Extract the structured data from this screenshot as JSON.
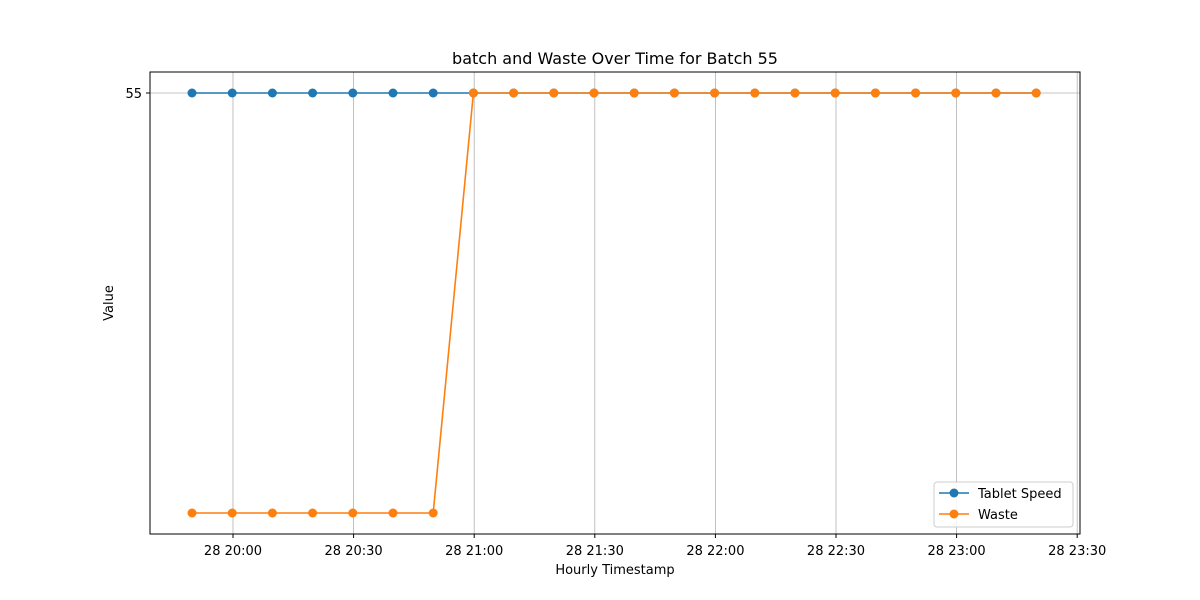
{
  "chart_data": {
    "type": "line",
    "title": "batch and Waste Over Time for Batch 55",
    "xlabel": "Hourly Timestamp",
    "ylabel": "Value",
    "x": [
      "28 19:50",
      "28 20:00",
      "28 20:10",
      "28 20:20",
      "28 20:30",
      "28 20:40",
      "28 20:50",
      "28 21:00",
      "28 21:10",
      "28 21:20",
      "28 21:30",
      "28 21:40",
      "28 21:50",
      "28 22:00",
      "28 22:10",
      "28 22:20",
      "28 22:30",
      "28 22:40",
      "28 22:50",
      "28 23:00",
      "28 23:10",
      "28 23:20"
    ],
    "x_ticks": [
      "28 20:00",
      "28 20:30",
      "28 21:00",
      "28 21:30",
      "28 22:00",
      "28 22:30",
      "28 23:00",
      "28 23:30"
    ],
    "y_ticks": [
      55
    ],
    "series": [
      {
        "name": "Tablet Speed",
        "color": "#1f77b4",
        "values": [
          55,
          55,
          55,
          55,
          55,
          55,
          55,
          55,
          55,
          55,
          55,
          55,
          55,
          55,
          55,
          55,
          55,
          55,
          55,
          55,
          55,
          55
        ]
      },
      {
        "name": "Waste",
        "color": "#ff7f0e",
        "values": [
          null,
          null,
          null,
          null,
          null,
          null,
          null,
          55,
          55,
          55,
          55,
          55,
          55,
          55,
          55,
          55,
          55,
          55,
          55,
          55,
          55,
          55
        ]
      }
    ],
    "waste_low_segment_note": "",
    "grid": true,
    "legend_position": "lower-right"
  }
}
